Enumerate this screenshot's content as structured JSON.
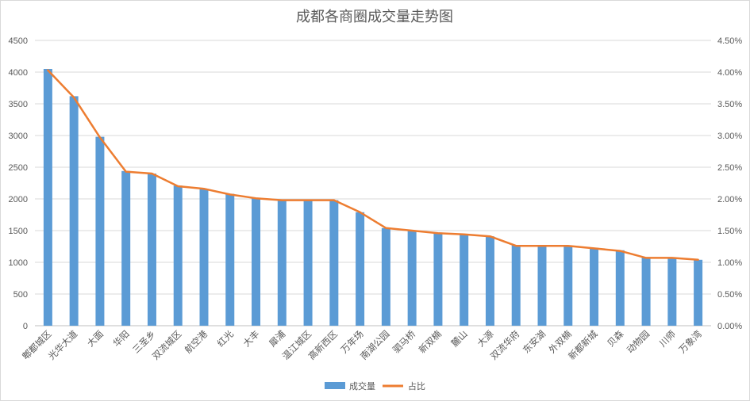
{
  "chart_data": {
    "type": "bar",
    "title": "成都各商圈成交量走势图",
    "categories": [
      "郫都城区",
      "光华大道",
      "大面",
      "华阳",
      "三圣乡",
      "双流城区",
      "航空港",
      "红光",
      "大丰",
      "犀浦",
      "温江城区",
      "高新西区",
      "万年场",
      "南湖公园",
      "驷马桥",
      "新双楠",
      "麓山",
      "大源",
      "双流华府",
      "东安湖",
      "外双楠",
      "新都新城",
      "贝森",
      "动物园",
      "川师",
      "万象湾"
    ],
    "series": [
      {
        "name": "成交量",
        "kind": "bar",
        "axis": "left",
        "color": "#5B9BD5",
        "values": [
          4050,
          3620,
          2980,
          2440,
          2400,
          2210,
          2160,
          2080,
          2010,
          1980,
          1980,
          1980,
          1790,
          1540,
          1500,
          1470,
          1450,
          1410,
          1270,
          1270,
          1260,
          1230,
          1190,
          1080,
          1080,
          1040
        ]
      },
      {
        "name": "占比",
        "kind": "line",
        "axis": "right",
        "color": "#ED7D31",
        "values": [
          4.03,
          3.6,
          2.97,
          2.43,
          2.4,
          2.2,
          2.16,
          2.07,
          2.01,
          1.98,
          1.98,
          1.98,
          1.79,
          1.54,
          1.5,
          1.46,
          1.44,
          1.41,
          1.26,
          1.26,
          1.26,
          1.22,
          1.18,
          1.07,
          1.07,
          1.04
        ]
      }
    ],
    "y_left": {
      "min": 0,
      "max": 4500,
      "ticks": [
        "0",
        "500",
        "1000",
        "1500",
        "2000",
        "2500",
        "3000",
        "3500",
        "4000",
        "4500"
      ]
    },
    "y_right": {
      "min": 0,
      "max": 4.5,
      "ticks": [
        "0.00%",
        "0.50%",
        "1.00%",
        "1.50%",
        "2.00%",
        "2.50%",
        "3.00%",
        "3.50%",
        "4.00%",
        "4.50%"
      ]
    },
    "grid": true,
    "legend": "bottom"
  }
}
